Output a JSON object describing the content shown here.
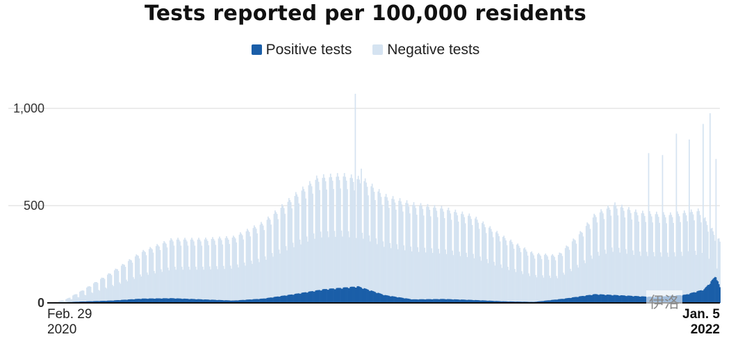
{
  "chart_data": {
    "type": "bar",
    "title": "Tests reported per 100,000 residents",
    "series": [
      {
        "name": "Positive tests",
        "color": "#1a5ea8"
      },
      {
        "name": "Negative tests",
        "color": "#d5e3f1"
      }
    ],
    "yticks": [
      {
        "value": 0,
        "label": "0"
      },
      {
        "value": 500,
        "label": "500"
      },
      {
        "value": 1000,
        "label": "1,000"
      }
    ],
    "ylim": [
      0,
      1100
    ],
    "grid": true,
    "legend": "top-center",
    "x_start": {
      "date": "2020-02-29",
      "label": "Feb. 29",
      "year": "2020"
    },
    "x_end": {
      "date": "2022-01-05",
      "label": "Jan. 5",
      "year": "2022"
    },
    "trend_total": [
      [
        "2020-02-29",
        0
      ],
      [
        "2020-03-15",
        15
      ],
      [
        "2020-04-01",
        60
      ],
      [
        "2020-05-01",
        150
      ],
      [
        "2020-06-01",
        250
      ],
      [
        "2020-07-01",
        310
      ],
      [
        "2020-08-01",
        310
      ],
      [
        "2020-09-01",
        320
      ],
      [
        "2020-10-01",
        390
      ],
      [
        "2020-11-01",
        520
      ],
      [
        "2020-11-25",
        610
      ],
      [
        "2020-12-20",
        620
      ],
      [
        "2021-01-10",
        600
      ],
      [
        "2021-02-01",
        520
      ],
      [
        "2021-03-01",
        480
      ],
      [
        "2021-04-01",
        460
      ],
      [
        "2021-05-01",
        420
      ],
      [
        "2021-06-01",
        320
      ],
      [
        "2021-07-01",
        240
      ],
      [
        "2021-07-25",
        230
      ],
      [
        "2021-08-15",
        330
      ],
      [
        "2021-09-01",
        430
      ],
      [
        "2021-09-20",
        480
      ],
      [
        "2021-10-15",
        440
      ],
      [
        "2021-11-15",
        430
      ],
      [
        "2021-12-15",
        450
      ],
      [
        "2022-01-05",
        300
      ]
    ],
    "trend_positive": [
      [
        "2020-02-29",
        0
      ],
      [
        "2020-04-01",
        7
      ],
      [
        "2020-05-01",
        12
      ],
      [
        "2020-06-01",
        22
      ],
      [
        "2020-07-01",
        24
      ],
      [
        "2020-08-01",
        18
      ],
      [
        "2020-09-01",
        12
      ],
      [
        "2020-10-01",
        22
      ],
      [
        "2020-11-01",
        45
      ],
      [
        "2020-12-01",
        70
      ],
      [
        "2021-01-05",
        85
      ],
      [
        "2021-02-01",
        40
      ],
      [
        "2021-03-01",
        18
      ],
      [
        "2021-04-01",
        20
      ],
      [
        "2021-05-01",
        15
      ],
      [
        "2021-06-01",
        8
      ],
      [
        "2021-07-01",
        5
      ],
      [
        "2021-08-01",
        22
      ],
      [
        "2021-09-01",
        45
      ],
      [
        "2021-10-01",
        38
      ],
      [
        "2021-11-01",
        30
      ],
      [
        "2021-12-01",
        42
      ],
      [
        "2021-12-20",
        70
      ],
      [
        "2022-01-01",
        140
      ],
      [
        "2022-01-05",
        80
      ]
    ],
    "spikes": [
      [
        "2021-01-02",
        1075
      ],
      [
        "2021-01-08",
        690
      ],
      [
        "2021-10-25",
        770
      ],
      [
        "2021-11-08",
        760
      ],
      [
        "2021-11-22",
        870
      ],
      [
        "2021-12-05",
        840
      ],
      [
        "2021-12-19",
        920
      ],
      [
        "2021-12-26",
        975
      ],
      [
        "2022-01-01",
        740
      ]
    ]
  },
  "watermark": "伊洛"
}
